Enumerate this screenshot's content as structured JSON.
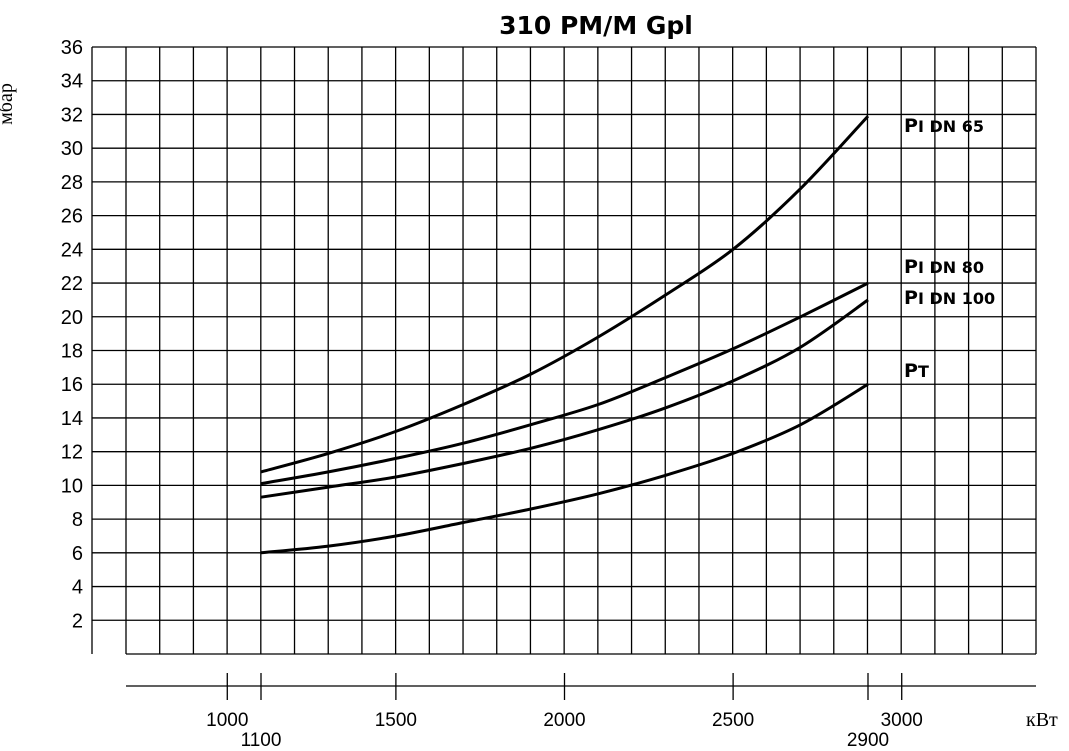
{
  "chart_data": {
    "type": "line",
    "title": "310 PM/M Gpl",
    "ylabel": "мбар",
    "xlabel": "кВт",
    "ylim": [
      0,
      36
    ],
    "xlim": [
      700,
      3250
    ],
    "grid": true,
    "y_ticks": [
      "2",
      "4",
      "6",
      "8",
      "10",
      "12",
      "14",
      "16",
      "18",
      "20",
      "22",
      "24",
      "26",
      "28",
      "30",
      "32",
      "34",
      "36"
    ],
    "x_ticks": [
      {
        "value": 1000,
        "label": "1000"
      },
      {
        "value": 1100,
        "label": "1100"
      },
      {
        "value": 1500,
        "label": "1500"
      },
      {
        "value": 2000,
        "label": "2000"
      },
      {
        "value": 2500,
        "label": "2500"
      },
      {
        "value": 2900,
        "label": "2900"
      },
      {
        "value": 3000,
        "label": "3000"
      }
    ],
    "series": [
      {
        "name": "DN 65",
        "label_prefix": "P",
        "label_sub": "I",
        "x": [
          1100,
          1300,
          1500,
          1700,
          1900,
          2100,
          2300,
          2500,
          2700,
          2900
        ],
        "values": [
          10.8,
          11.9,
          13.2,
          14.8,
          16.6,
          18.8,
          21.3,
          24.0,
          27.6,
          31.9
        ]
      },
      {
        "name": "DN 80",
        "label_prefix": "P",
        "label_sub": "I",
        "x": [
          1100,
          1300,
          1500,
          1700,
          1900,
          2100,
          2300,
          2500,
          2700,
          2900
        ],
        "values": [
          10.1,
          10.8,
          11.6,
          12.5,
          13.6,
          14.8,
          16.4,
          18.1,
          20.0,
          22.0
        ]
      },
      {
        "name": "DN 100",
        "label_prefix": "P",
        "label_sub": "I",
        "x": [
          1100,
          1300,
          1500,
          1700,
          1900,
          2100,
          2300,
          2500,
          2700,
          2900
        ],
        "values": [
          9.3,
          9.9,
          10.5,
          11.3,
          12.2,
          13.3,
          14.6,
          16.2,
          18.2,
          21.0
        ]
      },
      {
        "name": "",
        "label_prefix": "P",
        "label_sub": "T",
        "x": [
          1100,
          1300,
          1500,
          1700,
          1900,
          2100,
          2300,
          2500,
          2700,
          2900
        ],
        "values": [
          6.0,
          6.4,
          7.0,
          7.8,
          8.6,
          9.5,
          10.6,
          11.9,
          13.6,
          16.0
        ]
      }
    ]
  }
}
